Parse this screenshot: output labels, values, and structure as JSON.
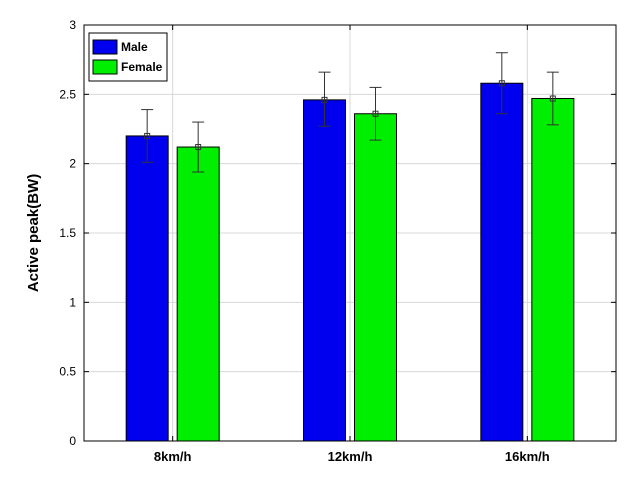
{
  "chart_data": {
    "type": "bar",
    "categories": [
      "8km/h",
      "12km/h",
      "16km/h"
    ],
    "series": [
      {
        "name": "Male",
        "color": "#0000ee",
        "values": [
          2.2,
          2.46,
          2.58
        ],
        "error_low": [
          2.01,
          2.27,
          2.36
        ],
        "error_high": [
          2.39,
          2.66,
          2.8
        ]
      },
      {
        "name": "Female",
        "color": "#00ee00",
        "values": [
          2.12,
          2.36,
          2.47
        ],
        "error_low": [
          1.94,
          2.17,
          2.28
        ],
        "error_high": [
          2.3,
          2.55,
          2.66
        ]
      }
    ],
    "title": "",
    "xlabel": "",
    "ylabel": "Active peak(BW)",
    "ylim": [
      0,
      3
    ],
    "yticks": [
      "0",
      "0.5",
      "1",
      "1.5",
      "2",
      "2.5",
      "3"
    ],
    "grid": true,
    "legend_position": "top-left"
  }
}
